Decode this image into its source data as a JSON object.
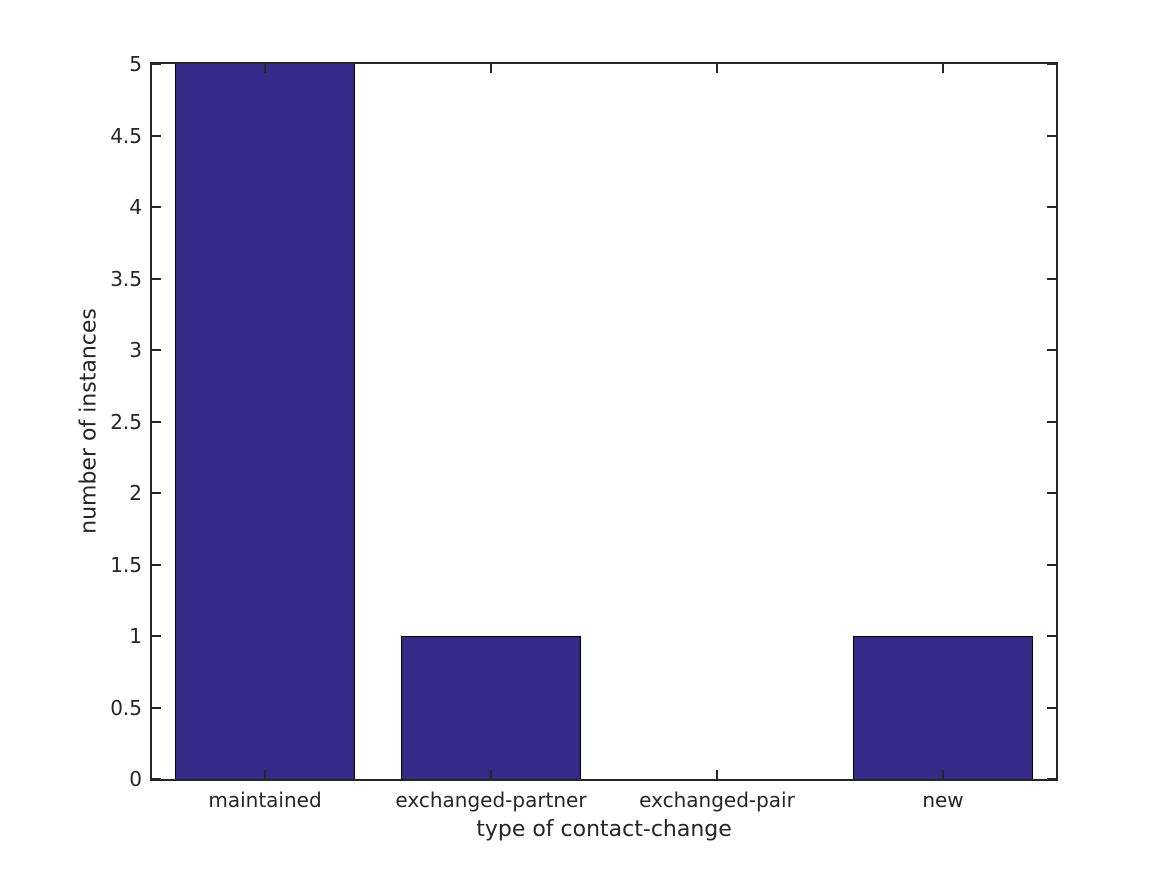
{
  "figure": {
    "background": "#ffffff"
  },
  "chart_data": {
    "type": "bar",
    "categories": [
      "maintained",
      "exchanged-partner",
      "exchanged-pair",
      "new"
    ],
    "values": [
      5,
      1,
      0,
      1
    ],
    "xlabel": "type of contact-change",
    "ylabel": "number of instances",
    "ylim": [
      0,
      5
    ],
    "ytick_interval": 0.5,
    "ytick_labels": [
      "0",
      "0.5",
      "1",
      "1.5",
      "2",
      "2.5",
      "3",
      "3.5",
      "4",
      "4.5",
      "5"
    ],
    "bar_width_fraction": 0.8,
    "grid": false,
    "legend_position": "none",
    "colors": {
      "bar_fill": "#352a87",
      "bar_edge": "#000000",
      "axis": "#262626",
      "text": "#262626"
    }
  }
}
